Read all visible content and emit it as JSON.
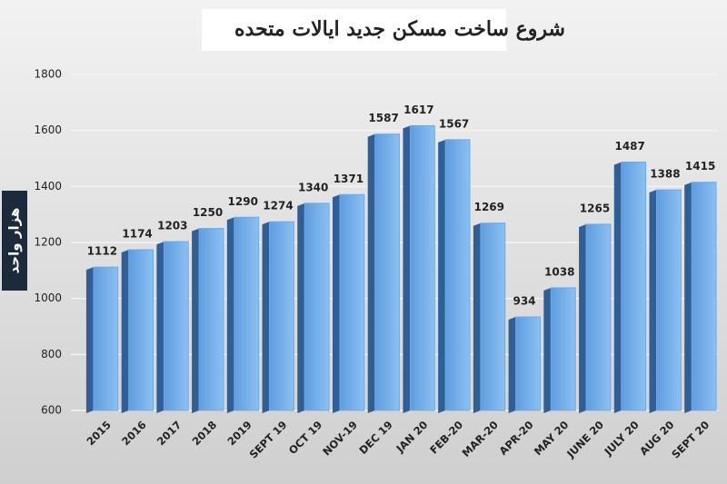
{
  "chart_data": {
    "type": "bar",
    "title": "شروع ساخت مسکن جدید ایالات متحده",
    "y_label": "هزار واحد",
    "categories": [
      "2015",
      "2016",
      "2017",
      "2018",
      "2019",
      "SEPT 19",
      "OCT 19",
      "NOV-19",
      "DEC 19",
      "JAN 20",
      "FEB-20",
      "MAR-20",
      "APR-20",
      "MAY 20",
      "JUNE 20",
      "JULY 20",
      "AUG 20",
      "SEPT 20"
    ],
    "values": [
      1112,
      1174,
      1203,
      1250,
      1290,
      1274,
      1340,
      1371,
      1587,
      1617,
      1567,
      1269,
      934,
      1038,
      1265,
      1487,
      1388,
      1415
    ],
    "color": "#6fa8e6",
    "ylim": [
      600,
      1800
    ],
    "yticks": [
      600,
      800,
      1000,
      1200,
      1400,
      1600,
      1800
    ],
    "grid": true
  }
}
